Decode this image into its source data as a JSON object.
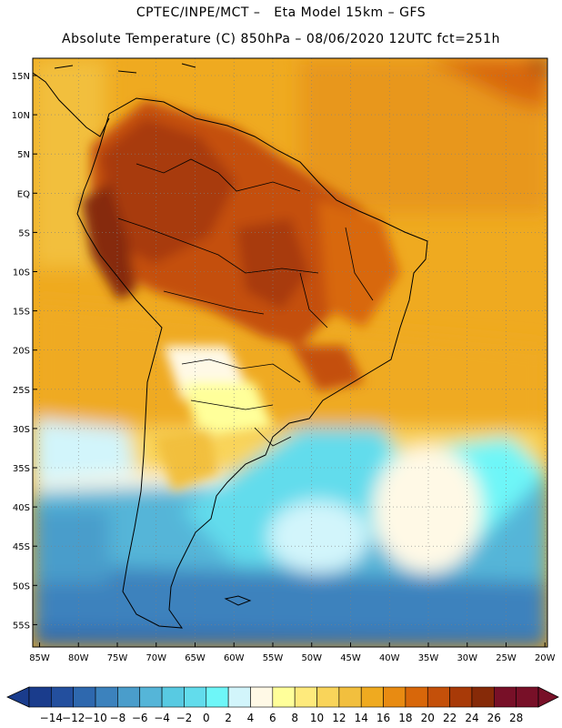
{
  "header": {
    "title_line1": "CPTEC/INPE/MCT –   Eta Model 15km – GFS",
    "title_line2": "Absolute Temperature (C) 850hPa – 08/06/2020 12UTC fct=251h"
  },
  "map": {
    "region": "South America",
    "latitude_labels": [
      "15N",
      "10N",
      "5N",
      "EQ",
      "5S",
      "10S",
      "15S",
      "20S",
      "25S",
      "30S",
      "35S",
      "40S",
      "45S",
      "50S",
      "55S"
    ],
    "longitude_labels": [
      "85W",
      "80W",
      "75W",
      "70W",
      "65W",
      "60W",
      "55W",
      "50W",
      "45W",
      "40W",
      "35W",
      "30W",
      "25W",
      "20W"
    ]
  },
  "colorbar": {
    "ticks": [
      "-14",
      "-12",
      "-10",
      "-8",
      "-6",
      "-4",
      "-2",
      "0",
      "2",
      "4",
      "6",
      "8",
      "10",
      "12",
      "14",
      "16",
      "18",
      "20",
      "22",
      "24",
      "26",
      "28"
    ],
    "colors": [
      "#1a3c8c",
      "#234f9e",
      "#2e68ae",
      "#3c82bd",
      "#4a9dcb",
      "#55b5d8",
      "#58cae2",
      "#62dcec",
      "#6ef6f8",
      "#d2f5fb",
      "#fff9e6",
      "#ffff9a",
      "#feea7c",
      "#f9d45a",
      "#f2bf3e",
      "#efaa20",
      "#e88b12",
      "#d8670a",
      "#c4500a",
      "#a83a08",
      "#862a08",
      "#781028"
    ]
  },
  "colors": {
    "ocean_cold": "#4ab8d8",
    "ocean_mid": "#e6a020",
    "land_hot": "#c0500a",
    "coastline": "#000000",
    "grid": "#808080"
  }
}
